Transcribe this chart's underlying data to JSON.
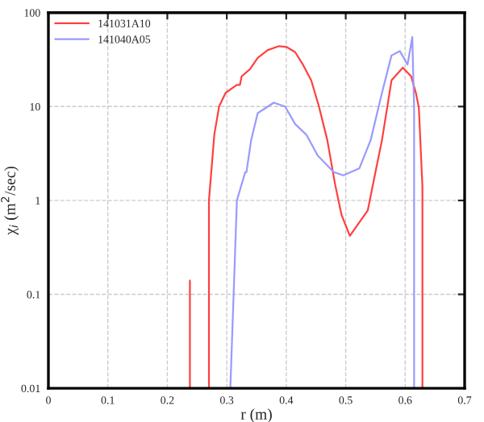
{
  "chart_data": {
    "type": "line",
    "xlabel": "r (m)",
    "ylabel": "χ$_{i}$ (m$^{2}$/sec)",
    "log": "y",
    "grid": true,
    "legend": "top left",
    "xlim": [
      0,
      0.7
    ],
    "xticks": [
      0,
      0.1,
      0.2,
      0.3,
      0.4,
      0.5,
      0.6,
      0.7
    ],
    "ylim": [
      0.01,
      100
    ],
    "yticks": [
      0.01,
      0.1,
      1,
      10,
      100
    ],
    "series": [
      {
        "name": "141031A10",
        "color": "#ff4040",
        "x": [
          0.238,
          0.238,
          null,
          0.27,
          0.27,
          0.279,
          0.287,
          0.298,
          0.317,
          0.322,
          0.325,
          0.339,
          0.352,
          0.369,
          0.388,
          0.401,
          0.415,
          0.428,
          0.442,
          0.455,
          0.469,
          0.482,
          0.493,
          0.507,
          0.52,
          0.537,
          0.55,
          0.561,
          0.577,
          0.596,
          0.61,
          0.618,
          0.623,
          0.629,
          0.629
        ],
        "values": [
          0.01,
          0.14,
          null,
          0.01,
          1.0,
          5,
          10,
          14,
          17,
          17,
          21,
          25,
          33,
          40,
          44,
          43,
          38,
          28,
          19,
          10,
          4.4,
          1.5,
          0.7,
          0.42,
          0.55,
          0.78,
          2.0,
          4.4,
          19,
          26,
          21,
          14,
          9.7,
          1.4,
          0.01
        ]
      },
      {
        "name": "141040A05",
        "color": "#9a9aff",
        "x": [
          0.306,
          0.317,
          0.331,
          0.333,
          0.341,
          0.352,
          0.379,
          0.398,
          0.415,
          0.434,
          0.453,
          0.48,
          0.496,
          0.523,
          0.542,
          0.561,
          0.577,
          0.591,
          0.604,
          0.612,
          0.613,
          0.615,
          0.615
        ],
        "values": [
          0.01,
          1.0,
          2.0,
          2.0,
          4.4,
          8.5,
          11,
          10,
          6.5,
          5,
          3,
          2,
          1.85,
          2.2,
          4.4,
          14,
          35,
          39,
          28,
          55,
          30,
          10,
          0.01
        ]
      }
    ]
  }
}
